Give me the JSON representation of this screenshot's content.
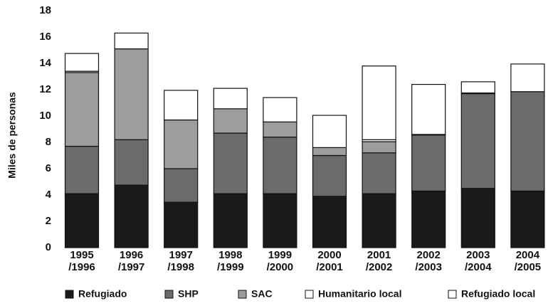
{
  "chart_data": {
    "type": "stacked_bar",
    "y_label": "Miles de personas",
    "categories": [
      "1995 /1996",
      "1996 /1997",
      "1997 /1998",
      "1998 /1999",
      "1999 /2000",
      "2000 /2001",
      "2001 /2002",
      "2002 /2003",
      "2003 /2004",
      "2004 /2005"
    ],
    "series": [
      {
        "name": "Refugiado",
        "color": "#1a1a1a",
        "values": [
          4.1,
          4.75,
          3.45,
          4.1,
          4.1,
          3.9,
          4.1,
          4.3,
          4.5,
          4.3
        ]
      },
      {
        "name": "SHP",
        "color": "#6b6b6b",
        "values": [
          3.6,
          3.45,
          2.55,
          4.6,
          4.3,
          3.1,
          3.1,
          4.25,
          7.2,
          7.55
        ]
      },
      {
        "name": "SAC",
        "color": "#9d9d9d",
        "values": [
          5.6,
          6.9,
          3.7,
          1.85,
          1.15,
          0.6,
          0.85,
          0.05,
          0.05,
          0
        ]
      },
      {
        "name": "Humanitario local",
        "color": "#ffffff",
        "values": [
          0.1,
          0,
          0,
          0,
          0,
          0,
          0.15,
          0,
          0,
          0
        ]
      },
      {
        "name": "Refugiado local",
        "color": "#ffffff",
        "values": [
          1.35,
          1.2,
          2.25,
          1.55,
          1.85,
          2.45,
          5.6,
          3.8,
          0.85,
          2.1
        ]
      }
    ],
    "ylim": [
      0,
      18
    ],
    "yticks": [
      0,
      2,
      4,
      6,
      8,
      10,
      12,
      14,
      16,
      18
    ],
    "grid": false
  }
}
